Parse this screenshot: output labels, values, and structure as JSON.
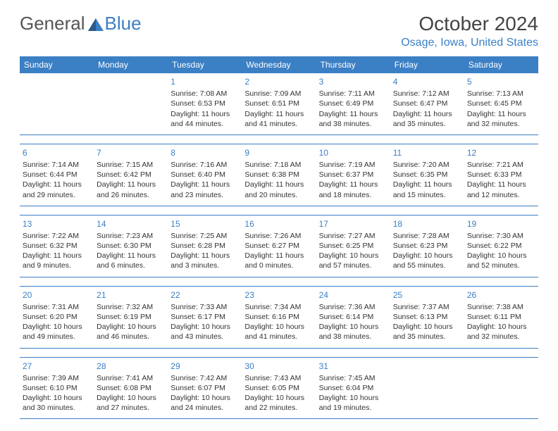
{
  "logo": {
    "part1": "General",
    "part2": "Blue"
  },
  "header": {
    "month_title": "October 2024",
    "location": "Osage, Iowa, United States"
  },
  "colors": {
    "accent": "#3b7fc4",
    "header_bg": "#3b7fc4",
    "header_text": "#ffffff",
    "body_text": "#333333",
    "background": "#ffffff"
  },
  "calendar": {
    "day_names": [
      "Sunday",
      "Monday",
      "Tuesday",
      "Wednesday",
      "Thursday",
      "Friday",
      "Saturday"
    ],
    "weeks": [
      [
        null,
        null,
        {
          "n": "1",
          "sr": "Sunrise: 7:08 AM",
          "ss": "Sunset: 6:53 PM",
          "dl": "Daylight: 11 hours and 44 minutes."
        },
        {
          "n": "2",
          "sr": "Sunrise: 7:09 AM",
          "ss": "Sunset: 6:51 PM",
          "dl": "Daylight: 11 hours and 41 minutes."
        },
        {
          "n": "3",
          "sr": "Sunrise: 7:11 AM",
          "ss": "Sunset: 6:49 PM",
          "dl": "Daylight: 11 hours and 38 minutes."
        },
        {
          "n": "4",
          "sr": "Sunrise: 7:12 AM",
          "ss": "Sunset: 6:47 PM",
          "dl": "Daylight: 11 hours and 35 minutes."
        },
        {
          "n": "5",
          "sr": "Sunrise: 7:13 AM",
          "ss": "Sunset: 6:45 PM",
          "dl": "Daylight: 11 hours and 32 minutes."
        }
      ],
      [
        {
          "n": "6",
          "sr": "Sunrise: 7:14 AM",
          "ss": "Sunset: 6:44 PM",
          "dl": "Daylight: 11 hours and 29 minutes."
        },
        {
          "n": "7",
          "sr": "Sunrise: 7:15 AM",
          "ss": "Sunset: 6:42 PM",
          "dl": "Daylight: 11 hours and 26 minutes."
        },
        {
          "n": "8",
          "sr": "Sunrise: 7:16 AM",
          "ss": "Sunset: 6:40 PM",
          "dl": "Daylight: 11 hours and 23 minutes."
        },
        {
          "n": "9",
          "sr": "Sunrise: 7:18 AM",
          "ss": "Sunset: 6:38 PM",
          "dl": "Daylight: 11 hours and 20 minutes."
        },
        {
          "n": "10",
          "sr": "Sunrise: 7:19 AM",
          "ss": "Sunset: 6:37 PM",
          "dl": "Daylight: 11 hours and 18 minutes."
        },
        {
          "n": "11",
          "sr": "Sunrise: 7:20 AM",
          "ss": "Sunset: 6:35 PM",
          "dl": "Daylight: 11 hours and 15 minutes."
        },
        {
          "n": "12",
          "sr": "Sunrise: 7:21 AM",
          "ss": "Sunset: 6:33 PM",
          "dl": "Daylight: 11 hours and 12 minutes."
        }
      ],
      [
        {
          "n": "13",
          "sr": "Sunrise: 7:22 AM",
          "ss": "Sunset: 6:32 PM",
          "dl": "Daylight: 11 hours and 9 minutes."
        },
        {
          "n": "14",
          "sr": "Sunrise: 7:23 AM",
          "ss": "Sunset: 6:30 PM",
          "dl": "Daylight: 11 hours and 6 minutes."
        },
        {
          "n": "15",
          "sr": "Sunrise: 7:25 AM",
          "ss": "Sunset: 6:28 PM",
          "dl": "Daylight: 11 hours and 3 minutes."
        },
        {
          "n": "16",
          "sr": "Sunrise: 7:26 AM",
          "ss": "Sunset: 6:27 PM",
          "dl": "Daylight: 11 hours and 0 minutes."
        },
        {
          "n": "17",
          "sr": "Sunrise: 7:27 AM",
          "ss": "Sunset: 6:25 PM",
          "dl": "Daylight: 10 hours and 57 minutes."
        },
        {
          "n": "18",
          "sr": "Sunrise: 7:28 AM",
          "ss": "Sunset: 6:23 PM",
          "dl": "Daylight: 10 hours and 55 minutes."
        },
        {
          "n": "19",
          "sr": "Sunrise: 7:30 AM",
          "ss": "Sunset: 6:22 PM",
          "dl": "Daylight: 10 hours and 52 minutes."
        }
      ],
      [
        {
          "n": "20",
          "sr": "Sunrise: 7:31 AM",
          "ss": "Sunset: 6:20 PM",
          "dl": "Daylight: 10 hours and 49 minutes."
        },
        {
          "n": "21",
          "sr": "Sunrise: 7:32 AM",
          "ss": "Sunset: 6:19 PM",
          "dl": "Daylight: 10 hours and 46 minutes."
        },
        {
          "n": "22",
          "sr": "Sunrise: 7:33 AM",
          "ss": "Sunset: 6:17 PM",
          "dl": "Daylight: 10 hours and 43 minutes."
        },
        {
          "n": "23",
          "sr": "Sunrise: 7:34 AM",
          "ss": "Sunset: 6:16 PM",
          "dl": "Daylight: 10 hours and 41 minutes."
        },
        {
          "n": "24",
          "sr": "Sunrise: 7:36 AM",
          "ss": "Sunset: 6:14 PM",
          "dl": "Daylight: 10 hours and 38 minutes."
        },
        {
          "n": "25",
          "sr": "Sunrise: 7:37 AM",
          "ss": "Sunset: 6:13 PM",
          "dl": "Daylight: 10 hours and 35 minutes."
        },
        {
          "n": "26",
          "sr": "Sunrise: 7:38 AM",
          "ss": "Sunset: 6:11 PM",
          "dl": "Daylight: 10 hours and 32 minutes."
        }
      ],
      [
        {
          "n": "27",
          "sr": "Sunrise: 7:39 AM",
          "ss": "Sunset: 6:10 PM",
          "dl": "Daylight: 10 hours and 30 minutes."
        },
        {
          "n": "28",
          "sr": "Sunrise: 7:41 AM",
          "ss": "Sunset: 6:08 PM",
          "dl": "Daylight: 10 hours and 27 minutes."
        },
        {
          "n": "29",
          "sr": "Sunrise: 7:42 AM",
          "ss": "Sunset: 6:07 PM",
          "dl": "Daylight: 10 hours and 24 minutes."
        },
        {
          "n": "30",
          "sr": "Sunrise: 7:43 AM",
          "ss": "Sunset: 6:05 PM",
          "dl": "Daylight: 10 hours and 22 minutes."
        },
        {
          "n": "31",
          "sr": "Sunrise: 7:45 AM",
          "ss": "Sunset: 6:04 PM",
          "dl": "Daylight: 10 hours and 19 minutes."
        },
        null,
        null
      ]
    ]
  }
}
